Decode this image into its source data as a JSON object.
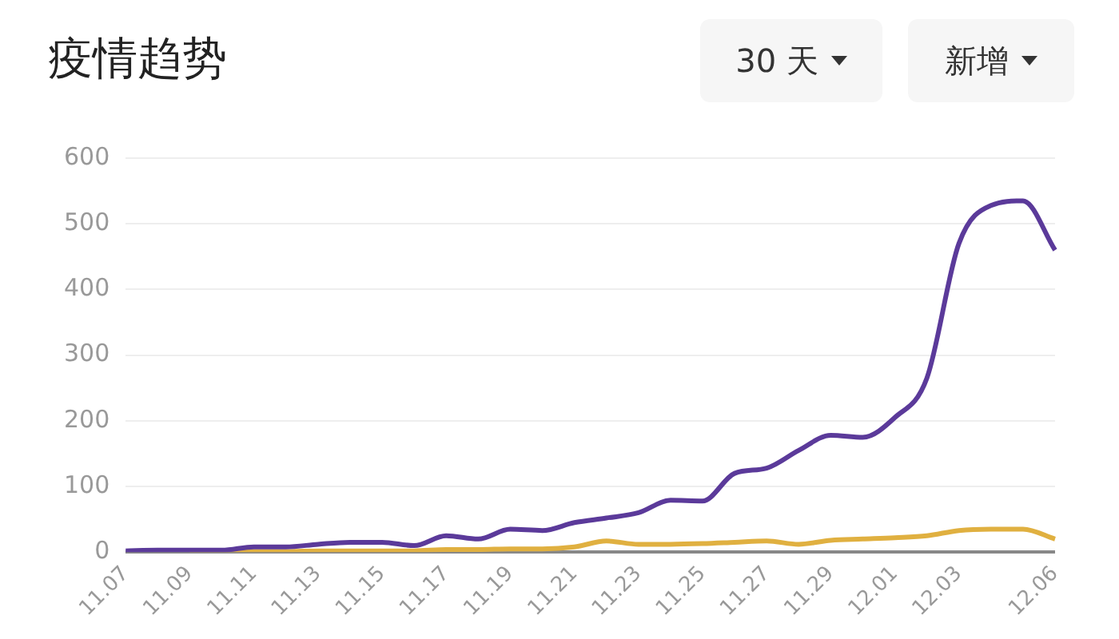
{
  "chart_data": {
    "type": "line",
    "title": "疫情趋势",
    "annotations": [
      "30 天",
      "新增"
    ],
    "categories": [
      "11.07",
      null,
      "11.09",
      null,
      "11.11",
      null,
      "11.13",
      null,
      "11.15",
      null,
      "11.17",
      null,
      "11.19",
      null,
      "11.21",
      null,
      "11.23",
      null,
      "11.25",
      null,
      "11.27",
      null,
      "11.29",
      null,
      "12.01",
      null,
      "12.03",
      null,
      null,
      "12.06"
    ],
    "series": [
      {
        "color": "#5b3a9a",
        "values": [
          2,
          3,
          3,
          3,
          8,
          8,
          12,
          15,
          15,
          10,
          25,
          20,
          35,
          33,
          45,
          52,
          60,
          79,
          78,
          120,
          128,
          155,
          178,
          175,
          205,
          265,
          470,
          528,
          535,
          460
        ]
      },
      {
        "color": "#e0b040",
        "values": [
          null,
          null,
          0,
          0,
          1,
          1,
          2,
          2,
          2,
          2,
          4,
          4,
          5,
          5,
          8,
          17,
          12,
          12,
          13,
          15,
          17,
          12,
          18,
          20,
          22,
          25,
          33,
          35,
          35,
          20
        ]
      }
    ],
    "ylim": [
      0,
      600
    ],
    "yticks": [
      0,
      100,
      200,
      300,
      400,
      500,
      600
    ],
    "grid": "y",
    "legend": false,
    "marker": "none",
    "line_style": "solid"
  }
}
